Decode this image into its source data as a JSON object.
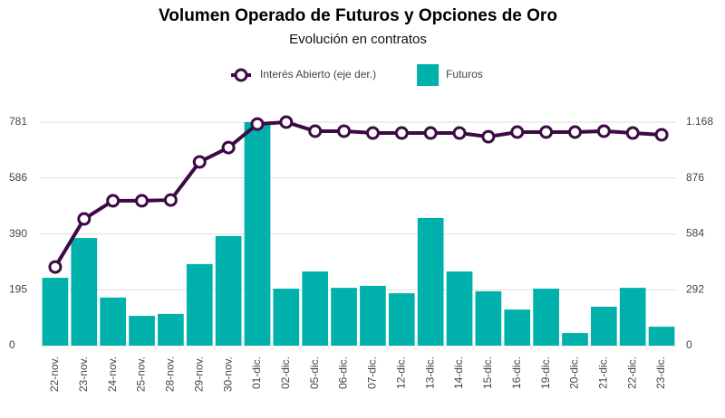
{
  "chart_data": {
    "type": "bar",
    "title": "Volumen Operado de Futuros y Opciones de Oro",
    "subtitle": "Evolución en contratos",
    "categories": [
      "22-nov.",
      "23-nov.",
      "24-nov.",
      "25-nov.",
      "28-nov.",
      "29-nov.",
      "30-nov.",
      "01-dic.",
      "02-dic.",
      "05-dic.",
      "06-dic.",
      "07-dic.",
      "12-dic.",
      "13-dic.",
      "14-dic.",
      "15-dic.",
      "16-dic.",
      "19-dic.",
      "20-dic.",
      "21-dic.",
      "22-dic.",
      "23-dic."
    ],
    "series": [
      {
        "name": "Interés Abierto (eje der.)",
        "type": "line",
        "axis": "y2",
        "color": "#3d0a45",
        "values": [
          411,
          662,
          757,
          757,
          761,
          960,
          1035,
          1158,
          1168,
          1121,
          1121,
          1111,
          1111,
          1111,
          1111,
          1092,
          1116,
          1116,
          1116,
          1121,
          1111,
          1102
        ]
      },
      {
        "name": "Futuros",
        "type": "bar",
        "color": "#00b0aa",
        "values": [
          237,
          376,
          168,
          104,
          111,
          285,
          383,
          781,
          199,
          259,
          202,
          209,
          183,
          446,
          259,
          190,
          126,
          199,
          44,
          136,
          202,
          66
        ]
      }
    ],
    "ylim": [
      0,
      781
    ],
    "yticks": [
      0,
      195,
      390,
      586,
      781
    ],
    "y2lim": [
      0,
      1168
    ],
    "y2ticks": [
      0,
      292,
      584,
      876,
      {
        "value": 1168,
        "label": "1.168"
      }
    ],
    "grid": true,
    "legend": "top"
  }
}
